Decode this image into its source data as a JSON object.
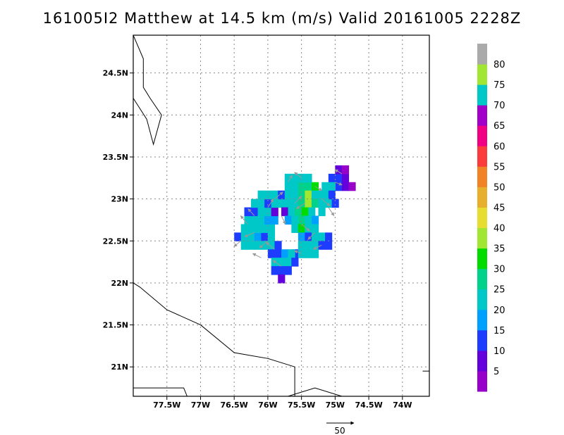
{
  "title": "161005I2 Matthew at 14.5 km (m/s) Valid 20161005 2228Z",
  "map": {
    "lon_range": [
      -78.0,
      -73.6
    ],
    "lat_range": [
      20.65,
      24.95
    ],
    "lon_ticks": [
      {
        "value": -77.5,
        "label": "77.5W"
      },
      {
        "value": -77.0,
        "label": "77W"
      },
      {
        "value": -76.5,
        "label": "76.5W"
      },
      {
        "value": -76.0,
        "label": "76W"
      },
      {
        "value": -75.5,
        "label": "75.5W"
      },
      {
        "value": -75.0,
        "label": "75W"
      },
      {
        "value": -74.5,
        "label": "74.5W"
      },
      {
        "value": -74.0,
        "label": "74W"
      }
    ],
    "lat_ticks": [
      {
        "value": 24.5,
        "label": "24.5N"
      },
      {
        "value": 24.0,
        "label": "24N"
      },
      {
        "value": 23.5,
        "label": "23.5N"
      },
      {
        "value": 23.0,
        "label": "23N"
      },
      {
        "value": 22.5,
        "label": "22.5N"
      },
      {
        "value": 22.0,
        "label": "22N"
      },
      {
        "value": 21.5,
        "label": "21.5N"
      },
      {
        "value": 21.0,
        "label": "21N"
      }
    ],
    "grid": "dotted",
    "vector_reference": {
      "value": 50,
      "label": "50"
    },
    "coastlines": [
      [
        [
          -78.0,
          24.95
        ],
        [
          -77.85,
          24.67
        ],
        [
          -77.85,
          24.33
        ],
        [
          -77.75,
          24.2
        ],
        [
          -77.58,
          24.0
        ],
        [
          -77.7,
          23.65
        ],
        [
          -77.8,
          23.95
        ],
        [
          -78.0,
          24.2
        ]
      ],
      [
        [
          -78.0,
          22.0
        ],
        [
          -77.9,
          21.95
        ],
        [
          -77.5,
          21.68
        ],
        [
          -77.0,
          21.5
        ],
        [
          -76.5,
          21.17
        ],
        [
          -76.0,
          21.1
        ],
        [
          -75.6,
          21.0
        ],
        [
          -75.6,
          20.65
        ]
      ],
      [
        [
          -78.0,
          20.75
        ],
        [
          -77.25,
          20.75
        ],
        [
          -77.2,
          20.65
        ]
      ],
      [
        [
          -75.7,
          20.65
        ],
        [
          -75.3,
          20.75
        ],
        [
          -74.9,
          20.65
        ]
      ],
      [
        [
          -73.7,
          20.95
        ],
        [
          -73.6,
          20.95
        ]
      ]
    ]
  },
  "colorbar": {
    "colors": [
      "#9600c8",
      "#6400dc",
      "#1e3cff",
      "#00a0ff",
      "#00c8c8",
      "#00d28c",
      "#00dc00",
      "#a0e632",
      "#e6dc32",
      "#e6af2d",
      "#f08228",
      "#fa3c3c",
      "#f00082",
      "#a000c8",
      "#00c8c8",
      "#a0e632",
      "#aaaaaa"
    ],
    "labels": [
      "5",
      "10",
      "15",
      "20",
      "25",
      "30",
      "35",
      "40",
      "45",
      "50",
      "55",
      "60",
      "65",
      "70",
      "75",
      "80"
    ]
  },
  "wind_field": {
    "units": "m/s",
    "cells": [
      [
        -76.45,
        22.55,
        14
      ],
      [
        -76.35,
        22.55,
        21
      ],
      [
        -76.25,
        22.55,
        20
      ],
      [
        -76.15,
        22.55,
        19
      ],
      [
        -76.05,
        22.55,
        12
      ],
      [
        -75.95,
        22.55,
        20
      ],
      [
        -76.35,
        22.45,
        20
      ],
      [
        -76.25,
        22.45,
        22
      ],
      [
        -76.15,
        22.45,
        20
      ],
      [
        -76.05,
        22.45,
        21
      ],
      [
        -75.95,
        22.45,
        21
      ],
      [
        -75.85,
        22.45,
        11
      ],
      [
        -76.35,
        22.65,
        22
      ],
      [
        -76.25,
        22.65,
        23
      ],
      [
        -76.15,
        22.65,
        22
      ],
      [
        -76.05,
        22.65,
        21
      ],
      [
        -75.95,
        22.65,
        22
      ],
      [
        -76.3,
        22.75,
        21
      ],
      [
        -76.2,
        22.75,
        20
      ],
      [
        -76.1,
        22.75,
        21
      ],
      [
        -76.0,
        22.75,
        19
      ],
      [
        -75.9,
        22.75,
        18
      ],
      [
        -76.3,
        22.85,
        12
      ],
      [
        -76.2,
        22.85,
        10
      ],
      [
        -76.1,
        22.85,
        21
      ],
      [
        -76.0,
        22.85,
        20
      ],
      [
        -75.9,
        22.85,
        8
      ],
      [
        -76.2,
        22.95,
        22
      ],
      [
        -76.1,
        22.95,
        20
      ],
      [
        -76.0,
        22.95,
        12
      ],
      [
        -75.9,
        22.95,
        21
      ],
      [
        -75.8,
        22.95,
        20
      ],
      [
        -76.1,
        23.05,
        22
      ],
      [
        -76.0,
        23.05,
        21
      ],
      [
        -75.9,
        23.05,
        21
      ],
      [
        -75.8,
        23.05,
        13
      ],
      [
        -75.7,
        23.15,
        22
      ],
      [
        -75.6,
        23.15,
        24
      ],
      [
        -75.5,
        23.15,
        25
      ],
      [
        -75.4,
        23.15,
        27
      ],
      [
        -75.3,
        23.15,
        30
      ],
      [
        -75.7,
        23.25,
        21
      ],
      [
        -75.6,
        23.25,
        22
      ],
      [
        -75.5,
        23.25,
        23
      ],
      [
        -75.4,
        23.25,
        20
      ],
      [
        -75.7,
        23.05,
        20
      ],
      [
        -75.6,
        23.05,
        23
      ],
      [
        -75.5,
        23.05,
        29
      ],
      [
        -75.4,
        23.05,
        36
      ],
      [
        -75.3,
        23.05,
        22
      ],
      [
        -75.2,
        23.05,
        20
      ],
      [
        -75.1,
        23.05,
        21
      ],
      [
        -75.7,
        22.95,
        21
      ],
      [
        -75.6,
        22.95,
        20
      ],
      [
        -75.5,
        22.95,
        28
      ],
      [
        -75.4,
        22.95,
        35
      ],
      [
        -75.3,
        22.95,
        29
      ],
      [
        -75.2,
        22.95,
        21
      ],
      [
        -75.1,
        22.95,
        22
      ],
      [
        -75.0,
        22.95,
        14
      ],
      [
        -75.75,
        22.85,
        8
      ],
      [
        -75.65,
        22.85,
        20
      ],
      [
        -75.55,
        22.85,
        26
      ],
      [
        -75.45,
        22.85,
        30
      ],
      [
        -75.35,
        22.85,
        22
      ],
      [
        -75.2,
        22.85,
        21
      ],
      [
        -75.7,
        22.75,
        18
      ],
      [
        -75.6,
        22.75,
        20
      ],
      [
        -75.5,
        22.75,
        27
      ],
      [
        -75.4,
        22.75,
        21
      ],
      [
        -75.3,
        22.75,
        19
      ],
      [
        -75.6,
        22.65,
        21
      ],
      [
        -75.5,
        22.65,
        30
      ],
      [
        -75.4,
        22.65,
        20
      ],
      [
        -75.3,
        22.65,
        20
      ],
      [
        -75.5,
        22.55,
        19
      ],
      [
        -75.4,
        22.55,
        14
      ],
      [
        -75.3,
        22.55,
        20
      ],
      [
        -75.2,
        22.55,
        21
      ],
      [
        -75.1,
        22.55,
        12
      ],
      [
        -75.5,
        22.45,
        21
      ],
      [
        -75.4,
        22.45,
        20
      ],
      [
        -75.3,
        22.45,
        20
      ],
      [
        -75.2,
        22.45,
        11
      ],
      [
        -75.1,
        22.45,
        10
      ],
      [
        -75.6,
        22.35,
        14
      ],
      [
        -75.5,
        22.35,
        21
      ],
      [
        -75.4,
        22.35,
        20
      ],
      [
        -75.3,
        22.35,
        21
      ],
      [
        -75.95,
        22.35,
        11
      ],
      [
        -75.85,
        22.35,
        10
      ],
      [
        -75.75,
        22.35,
        19
      ],
      [
        -75.65,
        22.35,
        20
      ],
      [
        -75.9,
        22.25,
        20
      ],
      [
        -75.8,
        22.25,
        21
      ],
      [
        -75.7,
        22.25,
        20
      ],
      [
        -75.6,
        22.25,
        12
      ],
      [
        -75.9,
        22.15,
        11
      ],
      [
        -75.8,
        22.15,
        14
      ],
      [
        -75.7,
        22.15,
        10
      ],
      [
        -75.8,
        22.05,
        6
      ],
      [
        -75.05,
        23.25,
        12
      ],
      [
        -74.95,
        23.25,
        11
      ],
      [
        -74.85,
        23.25,
        5
      ],
      [
        -74.95,
        23.35,
        7
      ],
      [
        -74.85,
        23.35,
        4
      ],
      [
        -74.95,
        23.15,
        11
      ],
      [
        -74.85,
        23.15,
        6
      ],
      [
        -74.75,
        23.15,
        4
      ],
      [
        -75.05,
        23.15,
        20
      ],
      [
        -75.05,
        23.05,
        12
      ],
      [
        -75.15,
        23.15,
        21
      ]
    ],
    "vectors": [
      [
        -76.4,
        22.5,
        -10,
        -8
      ],
      [
        -76.2,
        22.6,
        -14,
        -6
      ],
      [
        -76.0,
        22.5,
        -12,
        -10
      ],
      [
        -76.2,
        22.8,
        -9,
        10
      ],
      [
        -76.0,
        22.9,
        8,
        12
      ],
      [
        -75.9,
        23.0,
        12,
        10
      ],
      [
        -75.7,
        23.2,
        6,
        10
      ],
      [
        -75.5,
        23.25,
        -10,
        8
      ],
      [
        -75.3,
        23.15,
        10,
        -6
      ],
      [
        -75.2,
        23.0,
        12,
        -10
      ],
      [
        -75.1,
        22.9,
        8,
        -12
      ],
      [
        -75.0,
        23.2,
        10,
        -4
      ],
      [
        -74.9,
        23.3,
        -10,
        6
      ],
      [
        -75.5,
        22.7,
        12,
        -10
      ],
      [
        -75.3,
        22.6,
        -10,
        -10
      ],
      [
        -75.2,
        22.45,
        -12,
        -6
      ],
      [
        -75.5,
        22.35,
        -10,
        4
      ],
      [
        -75.8,
        22.2,
        -12,
        8
      ],
      [
        -75.9,
        22.4,
        -12,
        10
      ],
      [
        -76.1,
        22.3,
        -12,
        6
      ],
      [
        -75.6,
        22.95,
        10,
        10
      ],
      [
        -75.8,
        22.8,
        6,
        -12
      ],
      [
        -76.3,
        22.7,
        -10,
        12
      ],
      [
        -75.45,
        22.95,
        -12,
        -8
      ]
    ]
  }
}
